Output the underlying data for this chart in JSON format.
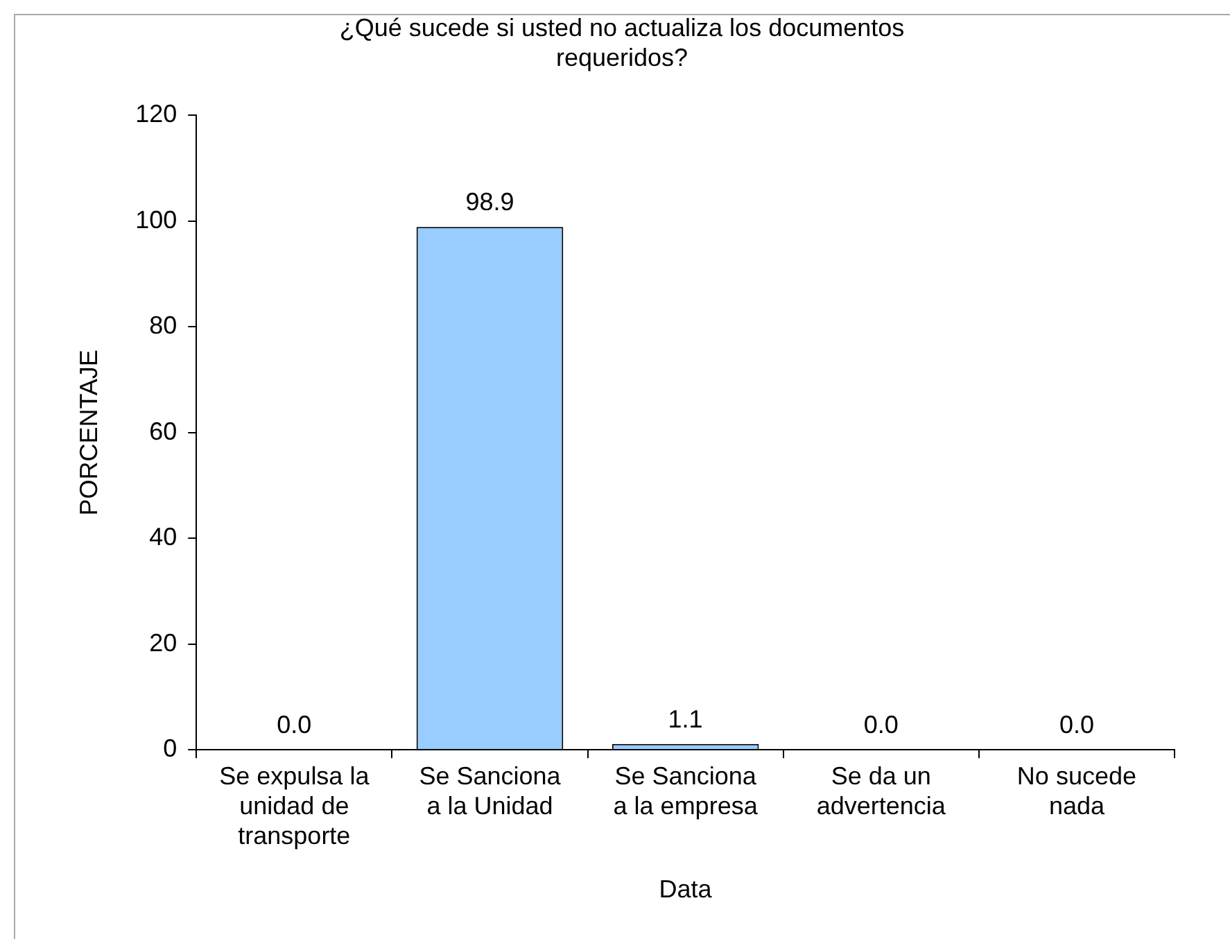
{
  "chart_data": {
    "type": "bar",
    "title": "¿Qué sucede si usted no actualiza los documentos requeridos?",
    "xlabel": "Data",
    "ylabel": "PORCENTAJE",
    "categories": [
      "Se expulsa la unidad de transporte",
      "Se Sanciona a la Unidad",
      "Se Sanciona a la empresa",
      "Se da un advertencia",
      "No sucede nada"
    ],
    "values": [
      0,
      98.9,
      1.1,
      0,
      0
    ],
    "value_labels": [
      "0.0",
      "98.9",
      "1.1",
      "0.0",
      "0.0"
    ],
    "color": "#99ccff",
    "ylim": [
      0,
      120
    ],
    "yticks": [
      0,
      20,
      40,
      60,
      80,
      100,
      120
    ],
    "grid": false,
    "legend": false
  }
}
